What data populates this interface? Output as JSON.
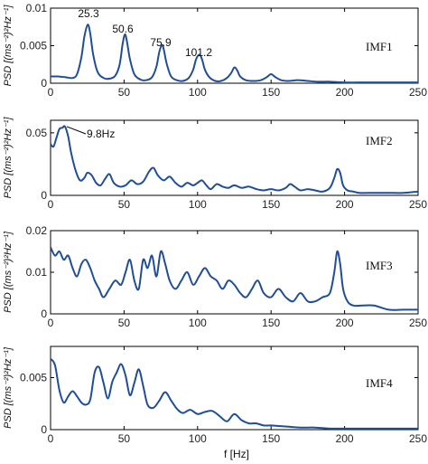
{
  "figure": {
    "xlabel": "f [Hz]",
    "ylabel": "PSD [(ms⁻²)²Hz⁻¹]"
  },
  "colors": {
    "line": "#1f4e96",
    "axis": "#000000"
  },
  "chart_data": [
    {
      "type": "line",
      "label": "IMF1",
      "xlim": [
        0,
        250
      ],
      "ylim": [
        0,
        0.01
      ],
      "xticks": [
        "0",
        "50",
        "100",
        "150",
        "200",
        "250"
      ],
      "yticks": [
        "0",
        "0.005",
        "0.01"
      ],
      "annotations": [
        "25.3",
        "50.6",
        "75.9",
        "101.2"
      ],
      "peaks": [
        [
          25.3,
          0.0078
        ],
        [
          50.6,
          0.0065
        ],
        [
          75.9,
          0.0051
        ],
        [
          101.2,
          0.0038
        ]
      ],
      "x": [
        0,
        5,
        10,
        15,
        18,
        21,
        23,
        25.3,
        27,
        29,
        32,
        36,
        40,
        44,
        47,
        49,
        50.6,
        52,
        54,
        57,
        61,
        65,
        69,
        72,
        74,
        75.9,
        77,
        79,
        82,
        86,
        90,
        94,
        97,
        99,
        101.2,
        103,
        105,
        108,
        112,
        116,
        120,
        123,
        125,
        127,
        129,
        133,
        138,
        143,
        147,
        150,
        153,
        157,
        162,
        168,
        175,
        182,
        190,
        200,
        210,
        220,
        230,
        240,
        250
      ],
      "y": [
        0.0009,
        0.0009,
        0.0008,
        0.0007,
        0.0012,
        0.0035,
        0.0062,
        0.0078,
        0.0066,
        0.0038,
        0.0015,
        0.0007,
        0.0006,
        0.001,
        0.0025,
        0.0052,
        0.0065,
        0.0055,
        0.0032,
        0.0012,
        0.0005,
        0.0004,
        0.0008,
        0.0022,
        0.0042,
        0.0051,
        0.0045,
        0.0026,
        0.0009,
        0.0004,
        0.0003,
        0.0007,
        0.0018,
        0.0032,
        0.0038,
        0.0032,
        0.0018,
        0.0008,
        0.0003,
        0.0003,
        0.0007,
        0.0014,
        0.0021,
        0.0017,
        0.0009,
        0.0004,
        0.0003,
        0.0004,
        0.0008,
        0.0012,
        0.0008,
        0.0004,
        0.0003,
        0.0004,
        0.0003,
        0.0002,
        0.0002,
        0.0001,
        0.0001,
        0.0001,
        0.0001,
        0.0001,
        0.0001
      ]
    },
    {
      "type": "line",
      "label": "IMF2",
      "xlim": [
        0,
        250
      ],
      "ylim": [
        0,
        0.06
      ],
      "xticks": [
        "0",
        "50",
        "100",
        "150",
        "200",
        "250"
      ],
      "yticks": [
        "0",
        "0.05"
      ],
      "annotations": [
        "9.8Hz"
      ],
      "peak": [
        9.8,
        0.055
      ],
      "x": [
        0,
        2,
        4,
        6,
        8,
        9.8,
        12,
        14,
        17,
        20,
        23,
        25,
        28,
        31,
        34,
        37,
        40,
        43,
        47,
        51,
        55,
        59,
        63,
        67,
        70,
        73,
        77,
        81,
        85,
        89,
        93,
        97,
        100,
        103,
        106,
        109,
        113,
        117,
        121,
        125,
        130,
        135,
        140,
        145,
        150,
        155,
        160,
        163,
        166,
        170,
        175,
        180,
        185,
        190,
        193,
        195,
        197,
        199,
        202,
        206,
        210,
        220,
        230,
        240,
        250
      ],
      "y": [
        0.041,
        0.039,
        0.046,
        0.053,
        0.054,
        0.055,
        0.047,
        0.034,
        0.02,
        0.012,
        0.014,
        0.018,
        0.016,
        0.01,
        0.008,
        0.013,
        0.017,
        0.01,
        0.007,
        0.008,
        0.012,
        0.009,
        0.011,
        0.019,
        0.022,
        0.016,
        0.012,
        0.015,
        0.01,
        0.007,
        0.01,
        0.008,
        0.01,
        0.012,
        0.008,
        0.005,
        0.009,
        0.007,
        0.006,
        0.008,
        0.006,
        0.007,
        0.005,
        0.004,
        0.005,
        0.004,
        0.006,
        0.009,
        0.007,
        0.004,
        0.005,
        0.004,
        0.003,
        0.006,
        0.014,
        0.021,
        0.018,
        0.008,
        0.004,
        0.003,
        0.002,
        0.002,
        0.002,
        0.002,
        0.003
      ]
    },
    {
      "type": "line",
      "label": "IMF3",
      "xlim": [
        0,
        250
      ],
      "ylim": [
        0,
        0.02
      ],
      "xticks": [
        "0",
        "50",
        "100",
        "150",
        "200",
        "250"
      ],
      "yticks": [
        "0",
        "0.01",
        "0.02"
      ],
      "x": [
        0,
        3,
        6,
        9,
        12,
        15,
        18,
        21,
        24,
        27,
        30,
        33,
        36,
        40,
        44,
        48,
        51,
        54,
        57,
        60,
        63,
        66,
        69,
        72,
        75,
        78,
        81,
        85,
        89,
        93,
        97,
        101,
        105,
        109,
        113,
        117,
        121,
        125,
        129,
        133,
        137,
        141,
        145,
        150,
        155,
        160,
        165,
        170,
        175,
        180,
        185,
        190,
        193,
        195,
        197,
        199,
        202,
        206,
        212,
        220,
        230,
        240,
        250
      ],
      "y": [
        0.016,
        0.014,
        0.015,
        0.013,
        0.014,
        0.011,
        0.009,
        0.012,
        0.013,
        0.011,
        0.008,
        0.006,
        0.004,
        0.006,
        0.008,
        0.007,
        0.01,
        0.013,
        0.008,
        0.006,
        0.013,
        0.011,
        0.014,
        0.009,
        0.015,
        0.012,
        0.008,
        0.006,
        0.008,
        0.01,
        0.007,
        0.009,
        0.011,
        0.009,
        0.008,
        0.006,
        0.008,
        0.007,
        0.005,
        0.004,
        0.006,
        0.008,
        0.005,
        0.004,
        0.006,
        0.004,
        0.003,
        0.005,
        0.003,
        0.003,
        0.004,
        0.005,
        0.01,
        0.015,
        0.012,
        0.006,
        0.003,
        0.002,
        0.002,
        0.002,
        0.001,
        0.001,
        0.001
      ]
    },
    {
      "type": "line",
      "label": "IMF4",
      "xlim": [
        0,
        250
      ],
      "ylim": [
        0,
        0.008
      ],
      "xticks": [
        "0",
        "50",
        "100",
        "150",
        "200",
        "250"
      ],
      "yticks": [
        "0",
        "0.005"
      ],
      "x": [
        0,
        3,
        6,
        9,
        12,
        15,
        18,
        21,
        24,
        27,
        30,
        33,
        36,
        39,
        42,
        45,
        48,
        51,
        54,
        57,
        60,
        63,
        66,
        70,
        74,
        78,
        82,
        86,
        90,
        95,
        100,
        105,
        110,
        115,
        120,
        125,
        130,
        135,
        140,
        145,
        150,
        160,
        170,
        180,
        190,
        200,
        210,
        220,
        230,
        240,
        250
      ],
      "y": [
        0.0068,
        0.0062,
        0.0038,
        0.0026,
        0.0032,
        0.0037,
        0.0032,
        0.0026,
        0.0024,
        0.0029,
        0.0055,
        0.006,
        0.0045,
        0.003,
        0.0046,
        0.0055,
        0.0063,
        0.0052,
        0.0033,
        0.0045,
        0.0058,
        0.0042,
        0.0024,
        0.0021,
        0.0028,
        0.0036,
        0.0028,
        0.002,
        0.0016,
        0.0019,
        0.0015,
        0.0017,
        0.0018,
        0.0013,
        0.0008,
        0.0015,
        0.0009,
        0.0006,
        0.0006,
        0.0004,
        0.0004,
        0.0003,
        0.0002,
        0.0002,
        0.0001,
        0.0001,
        0.0001,
        0.0001,
        0.0001,
        0.0001,
        0.0001
      ]
    }
  ]
}
